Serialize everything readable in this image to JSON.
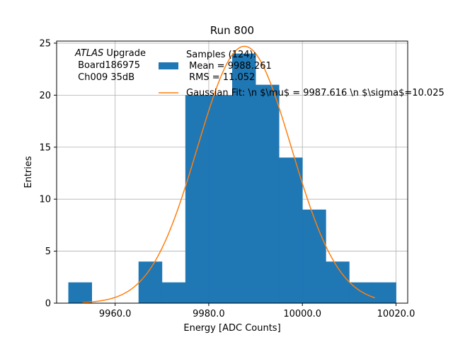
{
  "chart_data": {
    "type": "bar",
    "title": "Run 800",
    "xlabel": "Energy [ADC Counts]",
    "ylabel": "Entries",
    "xlim": [
      9947.5,
      10022.5
    ],
    "ylim": [
      0,
      25.2
    ],
    "xticks": [
      9960,
      9980,
      10000,
      10020
    ],
    "xtick_labels": [
      "9960.0",
      "9980.0",
      "10000.0",
      "10020.0"
    ],
    "yticks": [
      0,
      5,
      10,
      15,
      20,
      25
    ],
    "ytick_labels": [
      "0",
      "5",
      "10",
      "15",
      "20",
      "25"
    ],
    "grid": true,
    "histogram": {
      "name": "Samples",
      "color": "#1f77b4",
      "bins": [
        {
          "x0": 9950,
          "x1": 9955,
          "count": 2
        },
        {
          "x0": 9955,
          "x1": 9960,
          "count": 0
        },
        {
          "x0": 9960,
          "x1": 9965,
          "count": 0
        },
        {
          "x0": 9965,
          "x1": 9970,
          "count": 4
        },
        {
          "x0": 9970,
          "x1": 9975,
          "count": 2
        },
        {
          "x0": 9975,
          "x1": 9980,
          "count": 20
        },
        {
          "x0": 9980,
          "x1": 9985,
          "count": 20
        },
        {
          "x0": 9985,
          "x1": 9990,
          "count": 24
        },
        {
          "x0": 9990,
          "x1": 9995,
          "count": 21
        },
        {
          "x0": 9995,
          "x1": 10000,
          "count": 14
        },
        {
          "x0": 10000,
          "x1": 10005,
          "count": 9
        },
        {
          "x0": 10005,
          "x1": 10010,
          "count": 4
        },
        {
          "x0": 10010,
          "x1": 10015,
          "count": 2
        },
        {
          "x0": 10015,
          "x1": 10020,
          "count": 2
        }
      ]
    },
    "fit": {
      "name": "Gaussian Fit",
      "color": "#ff7f0e",
      "mu": 9987.616,
      "sigma": 10.025,
      "amplitude": 24.7,
      "x_range": [
        9953,
        10015.5
      ]
    },
    "legend": {
      "placement": "top-center",
      "entries": [
        {
          "series": "histogram",
          "lines": [
            "Samples (124):",
            " Mean = 9988.261",
            " RMS = 11.052"
          ]
        },
        {
          "series": "fit",
          "lines": [
            "Gaussian Fit: \\n $\\mu$ = 9987.616 \\n $\\sigma$=10.025"
          ]
        }
      ]
    },
    "annotation": {
      "placement": "top-left",
      "italic_word": "ATLAS",
      "line1_rest": " Upgrade",
      "line2": " Board186975",
      "line3": " Ch009 35dB"
    }
  }
}
